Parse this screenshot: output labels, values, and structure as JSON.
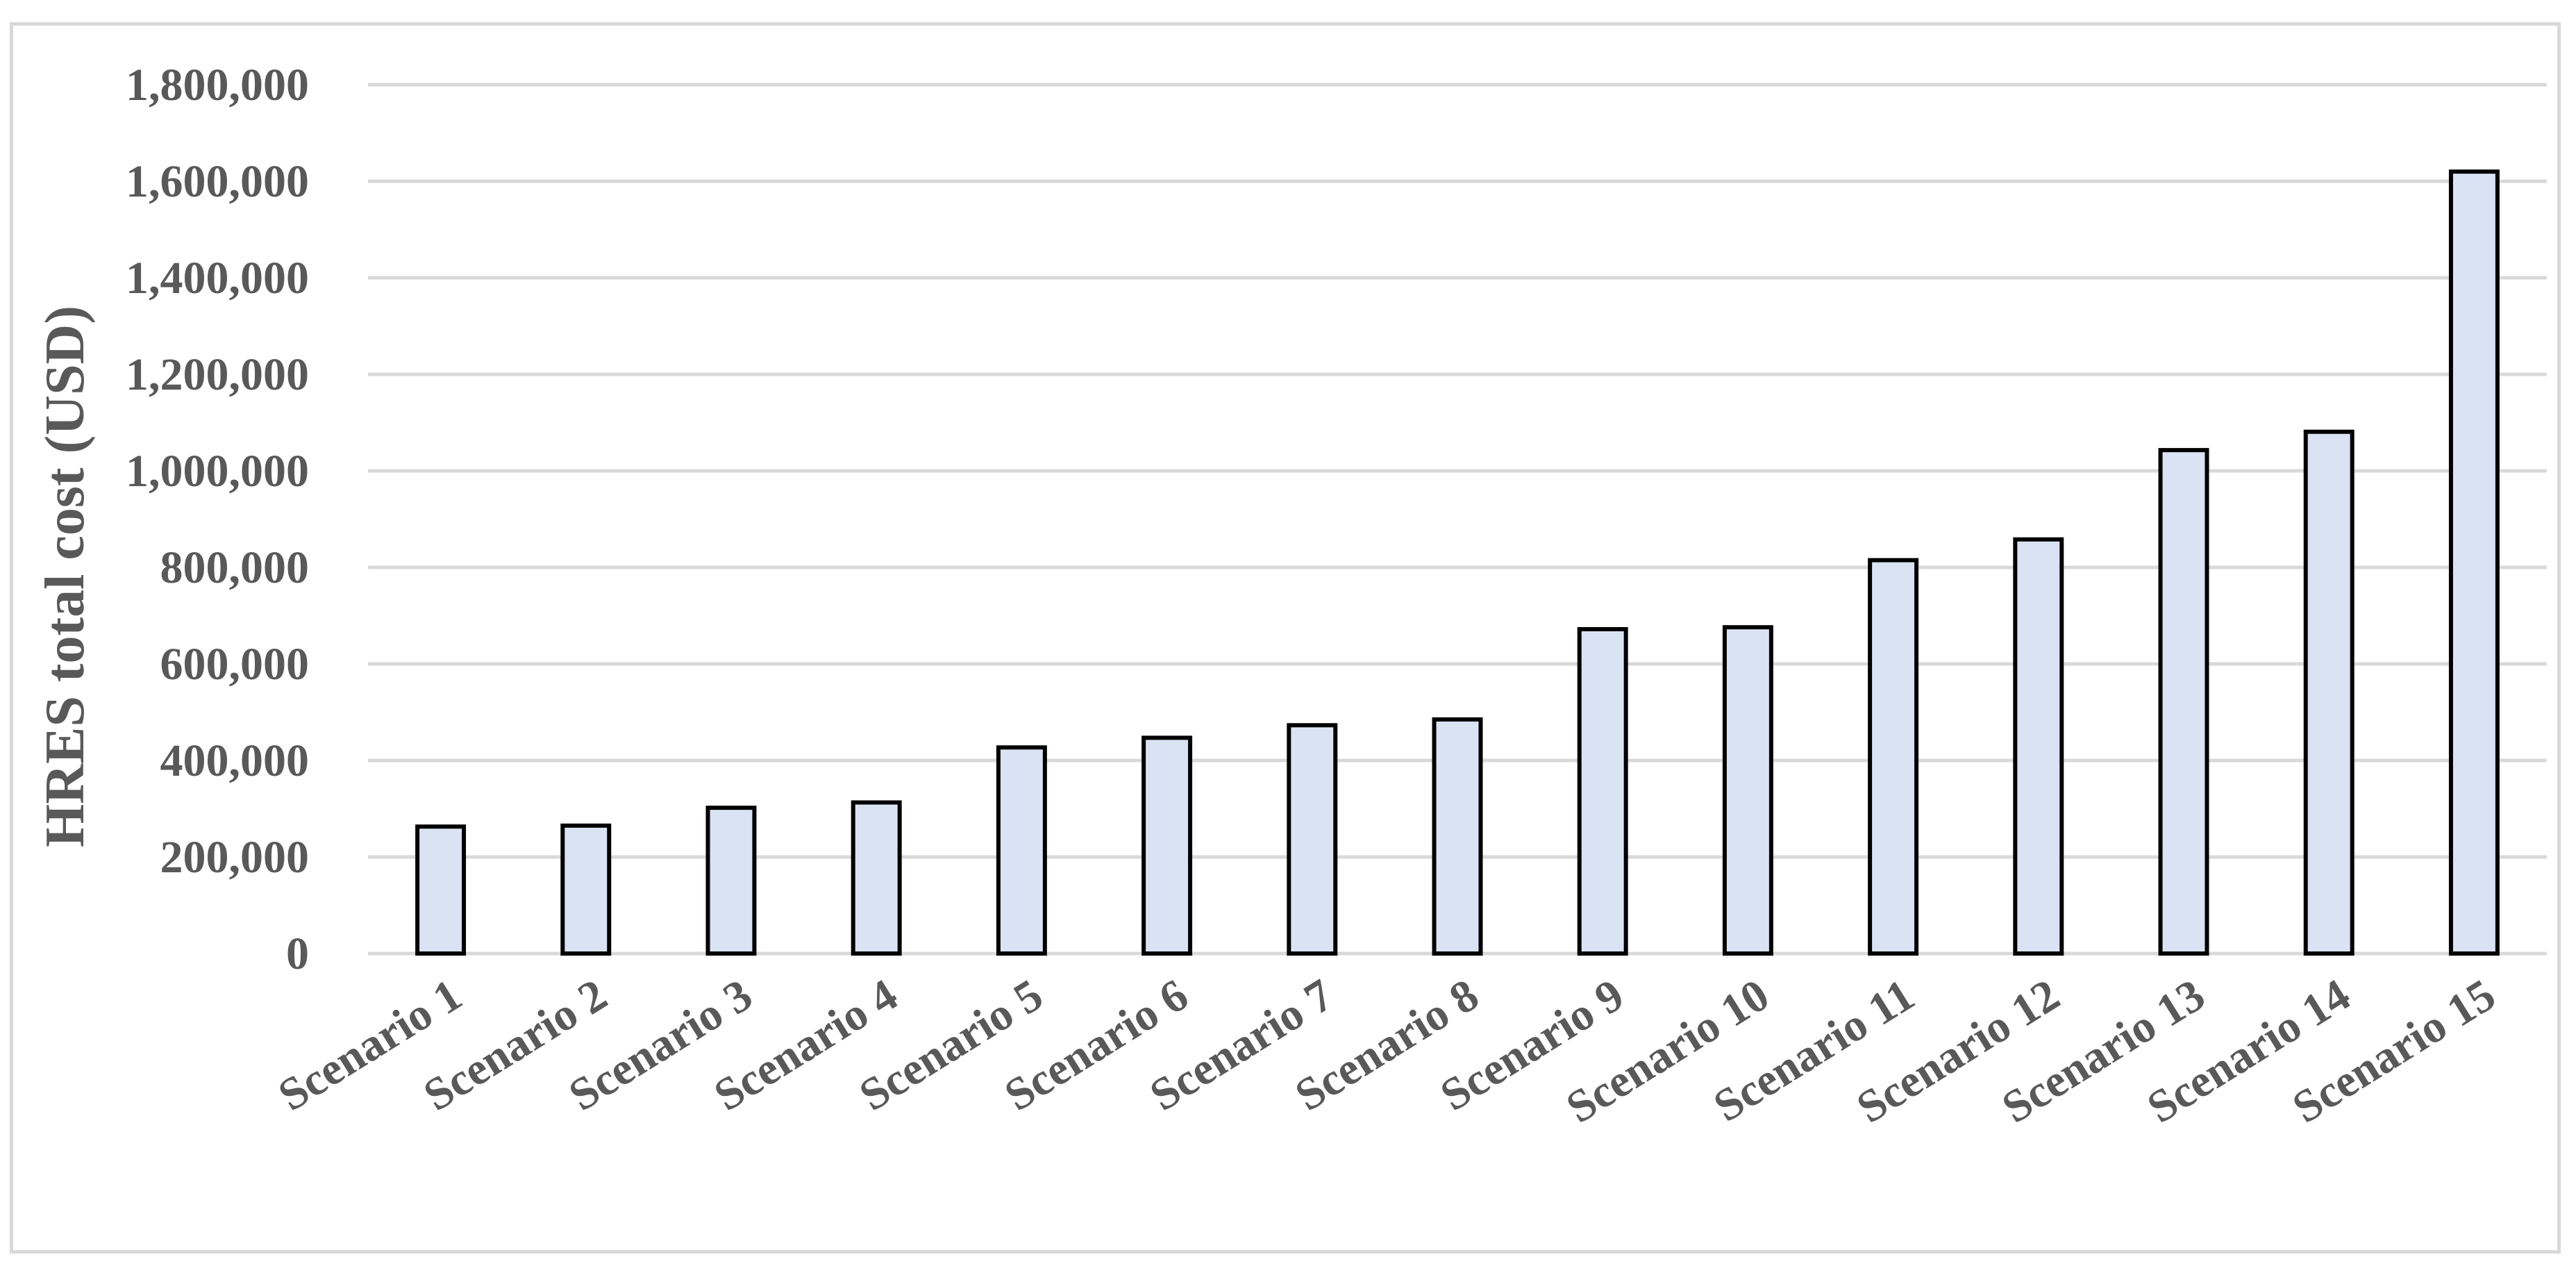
{
  "chart_data": {
    "type": "bar",
    "title": "",
    "xlabel": "",
    "ylabel": "HRES total cost (USD)",
    "ylim": [
      0,
      1800000
    ],
    "yticks": [
      0,
      200000,
      400000,
      600000,
      800000,
      1000000,
      1200000,
      1400000,
      1600000,
      1800000
    ],
    "ytick_labels": [
      "0",
      "200,000",
      "400,000",
      "600,000",
      "800,000",
      "1,000,000",
      "1,200,000",
      "1,400,000",
      "1,600,000",
      "1,800,000"
    ],
    "categories": [
      "Scenario 1",
      "Scenario 2",
      "Scenario 3",
      "Scenario 4",
      "Scenario 5",
      "Scenario 6",
      "Scenario 7",
      "Scenario 8",
      "Scenario 9",
      "Scenario 10",
      "Scenario 11",
      "Scenario 12",
      "Scenario 13",
      "Scenario 14",
      "Scenario 15"
    ],
    "values": [
      263000,
      265000,
      302000,
      313000,
      427000,
      447000,
      473000,
      485000,
      672000,
      676000,
      815000,
      858000,
      1043000,
      1081000,
      1620000
    ],
    "grid": true,
    "legend": "none",
    "colors": {
      "bar_fill": "#dae3f3",
      "bar_stroke": "#000000",
      "grid": "#d9d9d9",
      "text": "#595959"
    }
  }
}
